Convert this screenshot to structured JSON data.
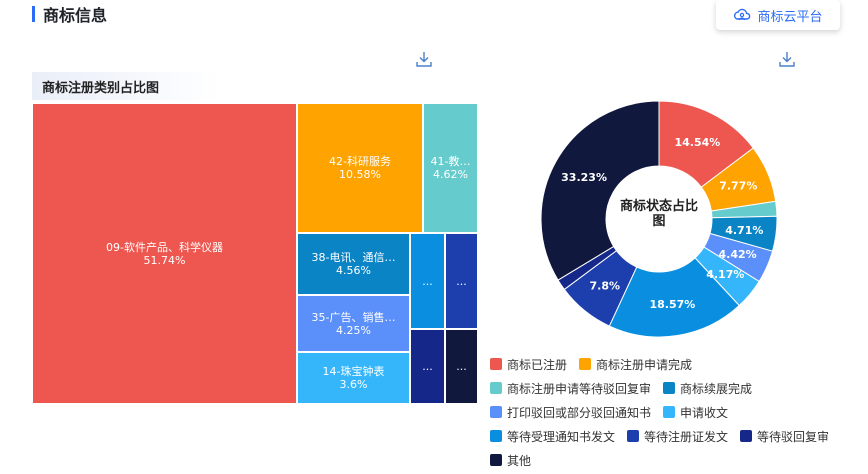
{
  "header": {
    "title": "商标信息",
    "cloud_label": "商标云平台"
  },
  "treemap": {
    "title": "商标注册类别占比图",
    "tiles": [
      {
        "label": "09-软件产品、科学仪器",
        "pct": "51.74%",
        "value": 51.74,
        "color": "#ee5750"
      },
      {
        "label": "42-科研服务",
        "pct": "10.58%",
        "value": 10.58,
        "color": "#fea300"
      },
      {
        "label": "41-教…",
        "pct": "4.62%",
        "value": 4.62,
        "color": "#65cbcc"
      },
      {
        "label": "38-电讯、通信…",
        "pct": "4.56%",
        "value": 4.56,
        "color": "#0b84c6"
      },
      {
        "label": "35-广告、销售…",
        "pct": "4.25%",
        "value": 4.25,
        "color": "#5b8ff9"
      },
      {
        "label": "14-珠宝钟表",
        "pct": "3.6%",
        "value": 3.6,
        "color": "#35b6fb"
      },
      {
        "label": "...",
        "color": "#0a8fe0"
      },
      {
        "label": "...",
        "color": "#1d3fad"
      },
      {
        "label": "...",
        "color": "#16278a"
      },
      {
        "label": "...",
        "color": "#11183e"
      }
    ]
  },
  "chart_data": {
    "type": "pie",
    "title": "商标状态占比图",
    "slices": [
      {
        "name": "商标已注册",
        "value": 14.54,
        "label": "14.54%",
        "color": "#ee5750"
      },
      {
        "name": "商标注册申请完成",
        "value": 7.77,
        "label": "7.77%",
        "color": "#fea300"
      },
      {
        "name": "商标注册申请等待驳回复审",
        "value": 2.0,
        "label": "",
        "color": "#65cbcc"
      },
      {
        "name": "商标续展完成",
        "value": 4.71,
        "label": "4.71%",
        "color": "#0b84c6"
      },
      {
        "name": "打印驳回或部分驳回通知书",
        "value": 4.42,
        "label": "4.42%",
        "color": "#5b8ff9"
      },
      {
        "name": "申请收文",
        "value": 4.17,
        "label": "4.17%",
        "color": "#35b6fb"
      },
      {
        "name": "等待受理通知书发文",
        "value": 18.57,
        "label": "18.57%",
        "color": "#0a8fe0"
      },
      {
        "name": "等待注册证发文",
        "value": 7.8,
        "label": "7.8%",
        "color": "#1d3fad"
      },
      {
        "name": "等待驳回复审",
        "value": 1.5,
        "label": "",
        "color": "#16278a"
      },
      {
        "name": "其他",
        "value": 33.23,
        "label": "33.23%",
        "color": "#11183e"
      }
    ],
    "legend_position": "bottom"
  }
}
